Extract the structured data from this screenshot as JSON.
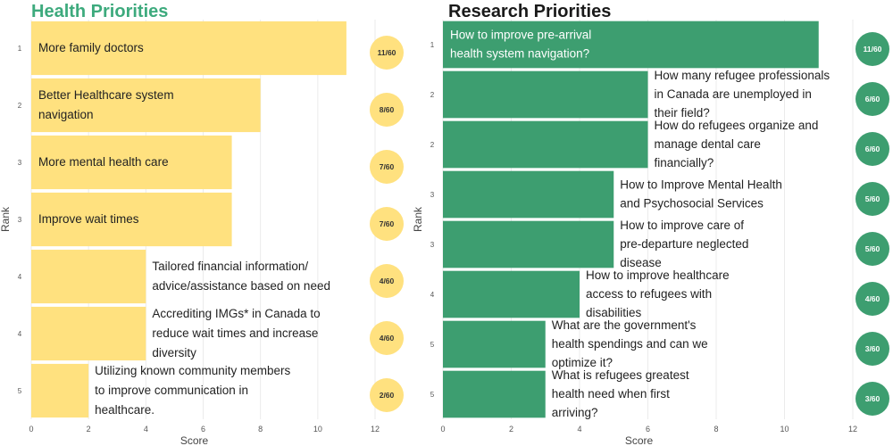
{
  "chart_data": [
    {
      "type": "bar",
      "orientation": "horizontal",
      "title": "Health Priorities",
      "xlabel": "Score",
      "ylabel": "Rank",
      "xlim": [
        0,
        12
      ],
      "xticks": [
        0,
        2,
        4,
        6,
        8,
        10,
        12
      ],
      "grid": true,
      "bar_color": "#FFE17F",
      "title_color": "#3DAA7D",
      "badge_color": "#FFE17F",
      "bars": [
        {
          "rank": "1",
          "value": 11,
          "label": "More family doctors",
          "badge": "11/60"
        },
        {
          "rank": "2",
          "value": 8,
          "label": "Better Healthcare system navigation",
          "badge": "8/60"
        },
        {
          "rank": "3",
          "value": 7,
          "label": "More mental health care",
          "badge": "7/60"
        },
        {
          "rank": "3",
          "value": 7,
          "label": "Improve wait times",
          "badge": "7/60"
        },
        {
          "rank": "4",
          "value": 4,
          "label": "Tailored financial information/ advice/assistance based on need",
          "badge": "4/60"
        },
        {
          "rank": "4",
          "value": 4,
          "label": "Accrediting IMGs* in Canada to reduce wait times and increase diversity",
          "badge": "4/60"
        },
        {
          "rank": "5",
          "value": 2,
          "label": "Utilizing known community members to improve communication in healthcare.",
          "badge": "2/60"
        }
      ]
    },
    {
      "type": "bar",
      "orientation": "horizontal",
      "title": "Research Priorities",
      "xlabel": "Score",
      "ylabel": "Rank",
      "xlim": [
        0,
        12
      ],
      "xticks": [
        0,
        2,
        4,
        6,
        8,
        10,
        12
      ],
      "grid": true,
      "bar_color": "#3D9E70",
      "title_color": "#1A1A1A",
      "badge_color": "#3D9E70",
      "bars": [
        {
          "rank": "1",
          "value": 11,
          "label": "How to improve pre-arrival health system navigation?",
          "badge": "11/60"
        },
        {
          "rank": "2",
          "value": 6,
          "label": "How many refugee professionals in Canada are unemployed in their field?",
          "badge": "6/60"
        },
        {
          "rank": "2",
          "value": 6,
          "label": "How do refugees organize and manage dental care financially?",
          "badge": "6/60"
        },
        {
          "rank": "3",
          "value": 5,
          "label": "How to Improve Mental Health and Psychosocial Services",
          "badge": "5/60"
        },
        {
          "rank": "3",
          "value": 5,
          "label": "How to improve care of pre-departure neglected disease",
          "badge": "5/60"
        },
        {
          "rank": "4",
          "value": 4,
          "label": "How to improve healthcare access to refugees with disabilities",
          "badge": "4/60"
        },
        {
          "rank": "5",
          "value": 3,
          "label": "What are the government's health spendings and can we optimize it?",
          "badge": "3/60"
        },
        {
          "rank": "5",
          "value": 3,
          "label": "What is refugees greatest health need when first arriving?",
          "badge": "3/60"
        }
      ]
    }
  ]
}
